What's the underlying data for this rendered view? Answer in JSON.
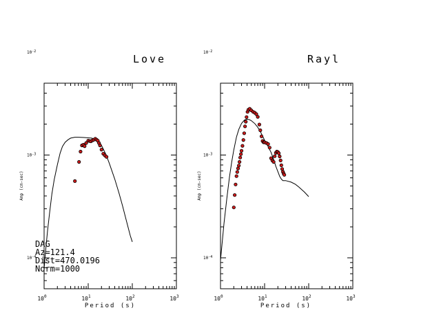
{
  "chart_data": [
    {
      "type": "scatter",
      "title": "Love",
      "xlabel": "Period (s)",
      "ylabel": "Amp (cm-sec)",
      "xscale": "log",
      "yscale": "log",
      "xlim": [
        1,
        1000
      ],
      "ylim": [
        5e-05,
        0.005
      ],
      "grid": false,
      "xticks": [
        {
          "base": "10",
          "exp": "0"
        },
        {
          "base": "10",
          "exp": "1"
        },
        {
          "base": "10",
          "exp": "2"
        },
        {
          "base": "10",
          "exp": "3"
        }
      ],
      "yticks": [
        {
          "base": "10",
          "exp": "-4"
        },
        {
          "base": "10",
          "exp": "-3"
        },
        {
          "base": "10",
          "exp": "-2"
        }
      ],
      "annotation": [
        "DAG",
        "Az=121.4",
        "Dist=470.0196",
        "Norm=1000"
      ],
      "series": [
        {
          "kind": "line",
          "color": "#000000",
          "x": [
            1.0,
            1.1,
            1.2,
            1.35,
            1.5,
            1.7,
            2.0,
            2.3,
            2.6,
            3.0,
            3.5,
            4.0,
            5.0,
            6.0,
            8.0,
            10.0,
            12.0,
            15.0,
            18.0,
            20.0,
            25.0,
            30.0,
            40.0,
            50.0,
            60.0,
            70.0,
            80.0,
            90.0,
            100.0
          ],
          "y": [
            7.84e-05,
            0.000125,
            0.000186,
            0.000286,
            0.000418,
            0.000577,
            0.000806,
            0.00104,
            0.00121,
            0.00133,
            0.00141,
            0.00146,
            0.00149,
            0.00149,
            0.00148,
            0.00147,
            0.00146,
            0.00141,
            0.00134,
            0.00124,
            0.00102,
            0.000835,
            0.000584,
            0.000426,
            0.000321,
            0.000248,
            0.000199,
            0.000164,
            0.000143
          ]
        },
        {
          "kind": "points",
          "color": "#cc1a1a",
          "x": [
            5.0,
            6.2,
            6.7,
            7.2,
            7.8,
            8.3,
            9.0,
            10.0,
            10.8,
            11.5,
            12.5,
            13.5,
            14.5,
            15.5,
            16.5,
            17.5,
            18.5,
            20.0,
            22.0,
            24.0,
            26.0
          ],
          "y": [
            0.000558,
            0.000857,
            0.00108,
            0.00124,
            0.00126,
            0.00122,
            0.00131,
            0.00138,
            0.00137,
            0.00136,
            0.00139,
            0.00141,
            0.00144,
            0.00141,
            0.00138,
            0.00131,
            0.00124,
            0.00113,
            0.00103,
            0.00099,
            0.00096
          ]
        }
      ]
    },
    {
      "type": "scatter",
      "title": "Rayl",
      "xlabel": "Period (s)",
      "ylabel": "Amp (cm-sec)",
      "xscale": "log",
      "yscale": "log",
      "xlim": [
        1,
        1000
      ],
      "ylim": [
        5e-05,
        0.005
      ],
      "grid": false,
      "xticks": [
        {
          "base": "10",
          "exp": "0"
        },
        {
          "base": "10",
          "exp": "1"
        },
        {
          "base": "10",
          "exp": "2"
        },
        {
          "base": "10",
          "exp": "3"
        }
      ],
      "yticks": [
        {
          "base": "10",
          "exp": "-4"
        },
        {
          "base": "10",
          "exp": "-3"
        },
        {
          "base": "10",
          "exp": "-2"
        }
      ],
      "annotation": [],
      "series": [
        {
          "kind": "line",
          "color": "#000000",
          "x": [
            1.0,
            1.2,
            1.4,
            1.6,
            1.8,
            2.0,
            2.3,
            2.6,
            3.0,
            3.5,
            4.0,
            4.5,
            5.0,
            6.0,
            7.0,
            8.0,
            9.0,
            10.0,
            12.0,
            14.0,
            16.0,
            18.0,
            20.0,
            22.0,
            24.0,
            26.0,
            28.0,
            30.0,
            40.0,
            50.0,
            60.0,
            80.0,
            100.0
          ],
          "y": [
            9.49e-05,
            0.000217,
            0.000389,
            0.000617,
            0.000857,
            0.00112,
            0.0015,
            0.00178,
            0.00203,
            0.00219,
            0.00223,
            0.00221,
            0.00216,
            0.00202,
            0.00186,
            0.00169,
            0.00153,
            0.00139,
            0.00121,
            0.00106,
            0.000906,
            0.000777,
            0.000689,
            0.00062,
            0.000583,
            0.000564,
            0.000564,
            0.000564,
            0.000545,
            0.000519,
            0.000488,
            0.000436,
            0.000394
          ]
        },
        {
          "kind": "points",
          "color": "#cc1a1a",
          "x": [
            2.0,
            2.1,
            2.2,
            2.3,
            2.4,
            2.5,
            2.6,
            2.7,
            2.8,
            2.9,
            3.0,
            3.15,
            3.3,
            3.45,
            3.6,
            3.75,
            3.9,
            4.1,
            4.3,
            4.6,
            5.0,
            5.5,
            6.0,
            6.5,
            7.0,
            7.6,
            8.0,
            8.5,
            9.0,
            9.5,
            10.0,
            11.0,
            12.0,
            13.0,
            14.0,
            15.0,
            16.0,
            17.0,
            18.0,
            19.0,
            20.0,
            21.0,
            22.0,
            23.0,
            24.0,
            25.0,
            26.0,
            27.0,
            28.0
          ],
          "y": [
            0.000309,
            0.000408,
            0.000517,
            0.000623,
            0.000684,
            0.00074,
            0.00079,
            0.000857,
            0.000945,
            0.00102,
            0.0011,
            0.00123,
            0.0014,
            0.00163,
            0.0019,
            0.00211,
            0.00234,
            0.00263,
            0.00276,
            0.00282,
            0.00272,
            0.00263,
            0.00258,
            0.0025,
            0.00235,
            0.00198,
            0.00174,
            0.00152,
            0.00137,
            0.00133,
            0.00133,
            0.00131,
            0.00128,
            0.00118,
            0.000931,
            0.000884,
            0.000857,
            0.000974,
            0.00105,
            0.00108,
            0.00107,
            0.00104,
            0.00097,
            0.000885,
            0.000795,
            0.000731,
            0.000687,
            0.000661,
            0.000642
          ]
        }
      ]
    }
  ]
}
